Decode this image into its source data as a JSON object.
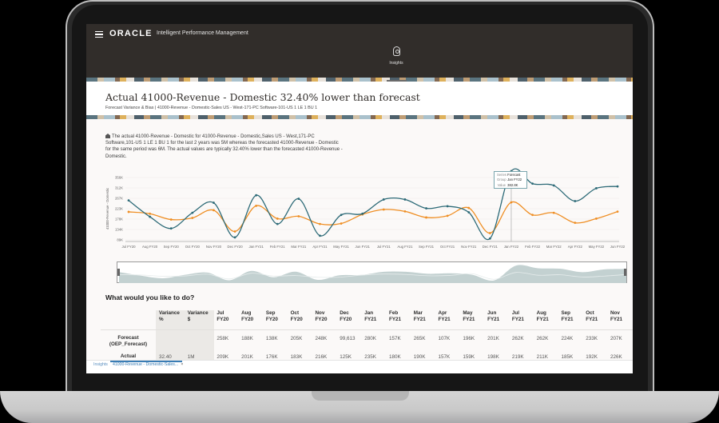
{
  "app": {
    "brand": "ORACLE",
    "title": "Intelligent Performance Management",
    "menu_icon": "hamburger-icon",
    "nav": [
      {
        "label": "Insights",
        "icon": "lightbulb-icon",
        "active": true
      }
    ]
  },
  "insight": {
    "title": "Actual 41000-Revenue - Domestic 32.40% lower than forecast",
    "subtitle": "Forecast Variance & Bias | 41000-Revenue - Domestic-Sales US - West-171-PC Software-101-US 1 LE 1 BU 1",
    "summary": "The actual 41000-Revenue - Domestic for 41000-Revenue - Domestic,Sales US - West,171-PC Software,101-US 1 LE 1 BU 1 for the last 2 years was 5M whereas the forecasted 41000-Revenue - Domestic for the same period was 6M. The actual values are typically 32.40% lower than the forecasted 41000-Revenue - Domestic."
  },
  "tooltip": {
    "series_key": "Series",
    "series": "Forecast",
    "group_key": "Group",
    "group": "Jan FY22",
    "value_key": "Value",
    "value": "382.8K"
  },
  "chart_data": {
    "type": "line",
    "title": "",
    "xlabel": "",
    "ylabel": "41000-Revenue - Domestic",
    "ylim": [
      89,
      356
    ],
    "yticks": [
      "356K",
      "312K",
      "267K",
      "223K",
      "178K",
      "134K",
      "89K"
    ],
    "grid": true,
    "x": [
      "Jul FY20",
      "Aug FY20",
      "Sep FY20",
      "Oct FY20",
      "Nov FY20",
      "Dec FY20",
      "Jan FY21",
      "Feb FY21",
      "Mar FY21",
      "Apr FY21",
      "May FY21",
      "Jun FY21",
      "Jul FY21",
      "Aug FY21",
      "Sep FY21",
      "Oct FY21",
      "Nov FY21",
      "Dec FY21",
      "Jan FY22",
      "Feb FY22",
      "Mar FY22",
      "Apr FY22",
      "May FY22",
      "Jun FY22"
    ],
    "series": [
      {
        "name": "Forecast",
        "color": "#2e6b78",
        "values": [
          258,
          188,
          138,
          205,
          248,
          99.6,
          280,
          157,
          265,
          107,
          196,
          201,
          262,
          262,
          224,
          233,
          207,
          95,
          382.8,
          330,
          322,
          255,
          310,
          318
        ]
      },
      {
        "name": "Actual",
        "color": "#ef8f25",
        "values": [
          209,
          201,
          176,
          183,
          216,
          125,
          235,
          180,
          190,
          157,
          159,
          198,
          219,
          211,
          185,
          192,
          226,
          118,
          250,
          196,
          205,
          162,
          180,
          210
        ]
      }
    ]
  },
  "actions": {
    "title": "What would you like to do?"
  },
  "table": {
    "headers": [
      {
        "l1": "",
        "l2": ""
      },
      {
        "l1": "Variance",
        "l2": "%"
      },
      {
        "l1": "Variance",
        "l2": "$"
      },
      {
        "l1": "Jul",
        "l2": "FY20"
      },
      {
        "l1": "Aug",
        "l2": "FY20"
      },
      {
        "l1": "Sep",
        "l2": "FY20"
      },
      {
        "l1": "Oct",
        "l2": "FY20"
      },
      {
        "l1": "Nov",
        "l2": "FY20"
      },
      {
        "l1": "Dec",
        "l2": "FY20"
      },
      {
        "l1": "Jan",
        "l2": "FY21"
      },
      {
        "l1": "Feb",
        "l2": "FY21"
      },
      {
        "l1": "Mar",
        "l2": "FY21"
      },
      {
        "l1": "Apr",
        "l2": "FY21"
      },
      {
        "l1": "May",
        "l2": "FY21"
      },
      {
        "l1": "Jun",
        "l2": "FY21"
      },
      {
        "l1": "Jul",
        "l2": "FY21"
      },
      {
        "l1": "Aug",
        "l2": "FY21"
      },
      {
        "l1": "Sep",
        "l2": "FY21"
      },
      {
        "l1": "Oct",
        "l2": "FY21"
      },
      {
        "l1": "Nov",
        "l2": "FY21"
      }
    ],
    "rows": [
      {
        "label1": "Forecast",
        "label2": "(OEP_Forecast)",
        "cells": [
          "",
          "",
          "258K",
          "188K",
          "138K",
          "205K",
          "248K",
          "99,613",
          "280K",
          "157K",
          "265K",
          "107K",
          "196K",
          "201K",
          "262K",
          "262K",
          "224K",
          "233K",
          "207K"
        ]
      },
      {
        "label1": "Actual",
        "label2": "",
        "cells": [
          "32.40",
          "1M",
          "209K",
          "201K",
          "176K",
          "183K",
          "216K",
          "125K",
          "235K",
          "180K",
          "190K",
          "157K",
          "159K",
          "198K",
          "219K",
          "211K",
          "185K",
          "192K",
          "226K"
        ]
      }
    ]
  },
  "tabs": [
    {
      "label": "Insights",
      "active": false
    },
    {
      "label": "41000-Revenue - Domestic-Sales...",
      "active": true,
      "close": "×"
    }
  ]
}
